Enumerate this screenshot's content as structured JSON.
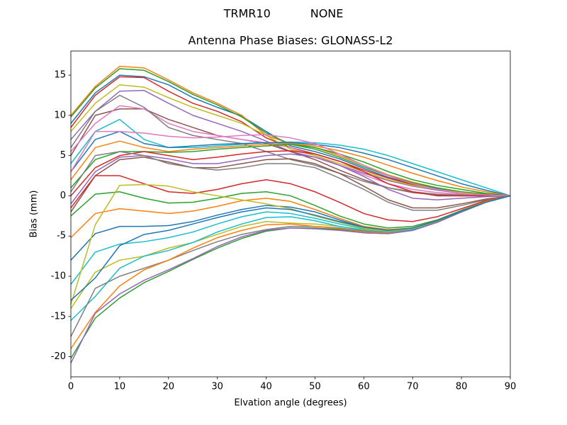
{
  "chart_data": {
    "type": "line",
    "suptitle": "TRMR10           NONE",
    "title": "Antenna Phase Biases: GLONASS-L2",
    "x_label": "Elvation angle (degrees)",
    "y_label": "Bias (mm)",
    "x": [
      0,
      5,
      10,
      15,
      20,
      25,
      30,
      35,
      40,
      45,
      50,
      55,
      60,
      65,
      70,
      75,
      80,
      85,
      90
    ],
    "xlim": [
      0,
      90
    ],
    "xticks": [
      0,
      10,
      20,
      30,
      40,
      50,
      60,
      70,
      80,
      90
    ],
    "ylim": [
      -22.5,
      18
    ],
    "yticks": [
      -20,
      -15,
      -10,
      -5,
      0,
      5,
      10,
      15
    ],
    "grid": false,
    "series": [
      {
        "color": "#1f77b4",
        "values": [
          9,
          12.8,
          15,
          14.8,
          13.8,
          12.2,
          11,
          9.9,
          8,
          6.2,
          5.5,
          4.6,
          3.4,
          2.3,
          1.5,
          0.9,
          0.4,
          0.1,
          0
        ]
      },
      {
        "color": "#ff7f0e",
        "values": [
          10,
          13.6,
          16.1,
          15.9,
          14.4,
          12.8,
          11.5,
          10,
          7.5,
          6.5,
          6,
          5,
          3.8,
          2.6,
          1.7,
          1,
          0.5,
          0.2,
          0
        ]
      },
      {
        "color": "#2ca02c",
        "values": [
          9.8,
          13.4,
          15.8,
          15.6,
          14.2,
          12.6,
          11.3,
          9.8,
          7.8,
          6.4,
          5.8,
          4.8,
          3.6,
          2.5,
          1.6,
          1,
          0.5,
          0.2,
          0
        ]
      },
      {
        "color": "#d62728",
        "values": [
          8.5,
          12.5,
          14.8,
          14.7,
          13,
          11.5,
          10.5,
          9.2,
          7.2,
          6,
          5.2,
          4.3,
          3.2,
          2.2,
          1.4,
          0.8,
          0.4,
          0.1,
          0
        ]
      },
      {
        "color": "#9467bd",
        "values": [
          7,
          10.5,
          13,
          13.1,
          11.5,
          10,
          9,
          8,
          6.8,
          5.5,
          4.8,
          3.8,
          2.8,
          1.9,
          1.2,
          0.7,
          0.3,
          0.1,
          0
        ]
      },
      {
        "color": "#8c564b",
        "values": [
          5,
          10,
          10.8,
          10.8,
          9.5,
          8.5,
          7.5,
          7,
          6.5,
          5.5,
          4.5,
          3.2,
          2,
          1,
          0.4,
          0.1,
          0,
          0,
          0
        ]
      },
      {
        "color": "#e377c2",
        "values": [
          5.5,
          9,
          11.2,
          10.8,
          9,
          8,
          7.5,
          7,
          6.6,
          6,
          5,
          3.8,
          2.6,
          1.5,
          0.8,
          0.4,
          0.2,
          0.1,
          0
        ]
      },
      {
        "color": "#7f7f7f",
        "values": [
          6,
          10.5,
          12.5,
          11,
          8.5,
          7.5,
          7,
          6.5,
          5.5,
          4.5,
          3.8,
          2.8,
          1.8,
          1,
          0.5,
          0.2,
          0.1,
          0,
          0
        ]
      },
      {
        "color": "#bcbd22",
        "values": [
          8,
          11.5,
          13.8,
          13.5,
          12.2,
          11,
          10,
          9,
          7.5,
          5.8,
          5,
          4,
          3,
          2,
          1.3,
          0.8,
          0.4,
          0.1,
          0
        ]
      },
      {
        "color": "#17becf",
        "values": [
          4,
          8,
          9.5,
          7,
          6,
          6,
          6.2,
          6.4,
          6.6,
          6.7,
          6.6,
          6.3,
          5.8,
          5,
          4,
          3,
          2,
          1,
          0
        ]
      },
      {
        "color": "#1f77b4",
        "values": [
          3,
          7,
          8,
          6.5,
          6,
          6.2,
          6.4,
          6.5,
          6.6,
          6.6,
          6.4,
          6,
          5.3,
          4.5,
          3.5,
          2.5,
          1.5,
          0.7,
          0
        ]
      },
      {
        "color": "#ff7f0e",
        "values": [
          2,
          6,
          6.8,
          6,
          5.5,
          5.8,
          6,
          6.2,
          6.4,
          6.5,
          6.2,
          5.6,
          4.8,
          3.8,
          2.8,
          1.9,
          1.1,
          0.5,
          0
        ]
      },
      {
        "color": "#2ca02c",
        "values": [
          1,
          4.5,
          5.5,
          5.5,
          5.4,
          5.5,
          5.8,
          6,
          6.2,
          6.4,
          6,
          5.2,
          4.2,
          3,
          2,
          1.3,
          0.8,
          0.3,
          0
        ]
      },
      {
        "color": "#d62728",
        "values": [
          0,
          3.5,
          5,
          5.5,
          5,
          4.5,
          4.8,
          5.2,
          5.5,
          5.6,
          5.2,
          4.3,
          3,
          1.5,
          0.5,
          0,
          0,
          0,
          0
        ]
      },
      {
        "color": "#9467bd",
        "values": [
          -1,
          3,
          4.8,
          5,
          4.6,
          4,
          4,
          4.5,
          5,
          5.2,
          4.8,
          3.8,
          2.4,
          0.8,
          -0.3,
          -0.5,
          -0.3,
          -0.1,
          0
        ]
      },
      {
        "color": "#8c564b",
        "values": [
          -2,
          2.5,
          4.5,
          4.8,
          4.2,
          3.5,
          3.5,
          4,
          4.5,
          4.6,
          4,
          2.8,
          1.2,
          -0.5,
          -1.5,
          -1.5,
          -1,
          -0.4,
          0
        ]
      },
      {
        "color": "#e377c2",
        "values": [
          3,
          8,
          8,
          7.8,
          7.4,
          7.2,
          7.3,
          7.5,
          7.6,
          7.2,
          6.5,
          5.2,
          3.8,
          2.5,
          1.5,
          0.8,
          0.3,
          0.1,
          0
        ]
      },
      {
        "color": "#7f7f7f",
        "values": [
          0.5,
          5,
          5.5,
          5,
          4,
          3.5,
          3.2,
          3.5,
          4,
          4,
          3.5,
          2.2,
          0.8,
          -0.8,
          -1.8,
          -1.8,
          -1.2,
          -0.5,
          0
        ]
      },
      {
        "color": "#d62728",
        "values": [
          -1.5,
          2.5,
          2.5,
          1.5,
          0.5,
          0.3,
          0.8,
          1.5,
          2,
          1.5,
          0.5,
          -0.8,
          -2.2,
          -3,
          -3.2,
          -2.6,
          -1.6,
          -0.6,
          0
        ]
      },
      {
        "color": "#2ca02c",
        "values": [
          -2.5,
          0.2,
          0.5,
          -0.3,
          -0.9,
          -0.8,
          -0.3,
          0.3,
          0.5,
          0,
          -1.2,
          -2.5,
          -3.5,
          -4,
          -3.8,
          -3,
          -1.8,
          -0.7,
          0
        ]
      },
      {
        "color": "#ff7f0e",
        "values": [
          -5.2,
          -2.2,
          -1.6,
          -1.9,
          -2.2,
          -1.9,
          -1.3,
          -0.6,
          -0.3,
          -0.7,
          -1.7,
          -2.8,
          -3.8,
          -4.2,
          -4,
          -3.1,
          -1.9,
          -0.7,
          0
        ]
      },
      {
        "color": "#1f77b4",
        "values": [
          -8,
          -4.7,
          -3.8,
          -3.8,
          -3.7,
          -3.2,
          -2.4,
          -1.7,
          -1.2,
          -1.4,
          -2,
          -3,
          -3.9,
          -4.3,
          -4.1,
          -3.2,
          -2,
          -0.8,
          0
        ]
      },
      {
        "color": "#17becf",
        "values": [
          -11,
          -7,
          -6,
          -5.7,
          -5.2,
          -4.5,
          -3.5,
          -2.6,
          -2,
          -2.2,
          -2.8,
          -3.5,
          -4.1,
          -4.4,
          -4.1,
          -3.2,
          -2,
          -0.8,
          0
        ]
      },
      {
        "color": "#bcbd22",
        "values": [
          -13.5,
          -3.6,
          1.3,
          1.4,
          1.2,
          0.5,
          0,
          -0.5,
          -1,
          -1.6,
          -2.5,
          -3.3,
          -4,
          -4.3,
          -4,
          -3.1,
          -1.9,
          -0.8,
          0
        ]
      },
      {
        "color": "#bcbd22",
        "values": [
          -14,
          -9.5,
          -8,
          -7.5,
          -6.5,
          -5.8,
          -4.8,
          -3.8,
          -3.2,
          -3.4,
          -3.5,
          -3.8,
          -4.2,
          -4.4,
          -4.1,
          -3.2,
          -2,
          -0.8,
          0
        ]
      },
      {
        "color": "#17becf",
        "values": [
          -15.5,
          -12.5,
          -9,
          -7.5,
          -6.8,
          -5.8,
          -4.5,
          -3.5,
          -2.7,
          -2.6,
          -3.1,
          -3.8,
          -4.3,
          -4.5,
          -4.2,
          -3.3,
          -2,
          -0.8,
          0
        ]
      },
      {
        "color": "#7f7f7f",
        "values": [
          -17.5,
          -11.5,
          -10,
          -9,
          -8,
          -6.8,
          -5.7,
          -4.8,
          -4.2,
          -3.8,
          -3.8,
          -4,
          -4.4,
          -4.6,
          -4.3,
          -3.3,
          -2,
          -0.8,
          0
        ]
      },
      {
        "color": "#ff7f0e",
        "values": [
          -19,
          -14.5,
          -11.2,
          -9.2,
          -8,
          -6.5,
          -5.2,
          -4.3,
          -3.6,
          -3.5,
          -3.8,
          -4.1,
          -4.5,
          -4.6,
          -4.3,
          -3.3,
          -2,
          -0.8,
          0
        ]
      },
      {
        "color": "#2ca02c",
        "values": [
          -20.2,
          -15.2,
          -12.7,
          -10.8,
          -9.4,
          -7.9,
          -6.5,
          -5.3,
          -4.4,
          -4,
          -4,
          -4.2,
          -4.6,
          -4.7,
          -4.3,
          -3.3,
          -2,
          -0.8,
          0
        ]
      },
      {
        "color": "#9467bd",
        "values": [
          -20.8,
          -14.6,
          -12.2,
          -10.5,
          -9.2,
          -7.8,
          -6.3,
          -5.1,
          -4.3,
          -4,
          -4.1,
          -4.3,
          -4.6,
          -4.7,
          -4.3,
          -3.3,
          -2,
          -0.8,
          0
        ]
      },
      {
        "color": "#1f77b4",
        "values": [
          -13,
          -10.2,
          -6.2,
          -4.8,
          -4.3,
          -3.5,
          -2.7,
          -2,
          -1.5,
          -1.7,
          -2.4,
          -3.2,
          -3.9,
          -4.3,
          -4,
          -3.1,
          -1.9,
          -0.8,
          0
        ]
      }
    ]
  }
}
